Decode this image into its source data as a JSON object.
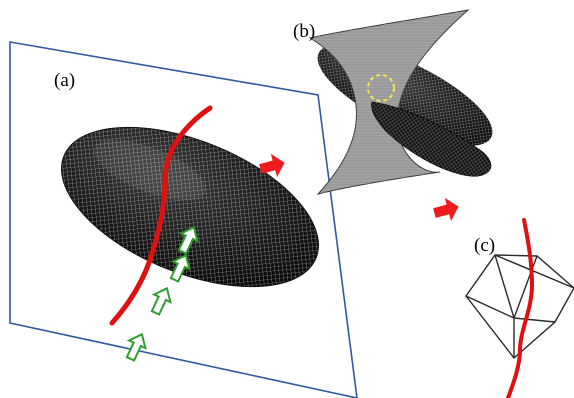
{
  "figure": {
    "labels": {
      "a": "(a)",
      "b": "(b)",
      "c": "(c)"
    },
    "colors": {
      "plane_border": "#2f5a9e",
      "curve": "#e01010",
      "ellipsoid_dark": "#151515",
      "ellipsoid_mesh": "#e6e6e6",
      "surface": "#9a9a9a",
      "arrow_green": "#2f9e2f",
      "flow_arrow": "#ee1c1c",
      "intersection_marker": "#f3e84a",
      "mesh_edges": "#2a2a2a"
    },
    "icons": {
      "flow": "red-block-arrow-icon",
      "direction": "green-outline-arrow-icon"
    }
  }
}
